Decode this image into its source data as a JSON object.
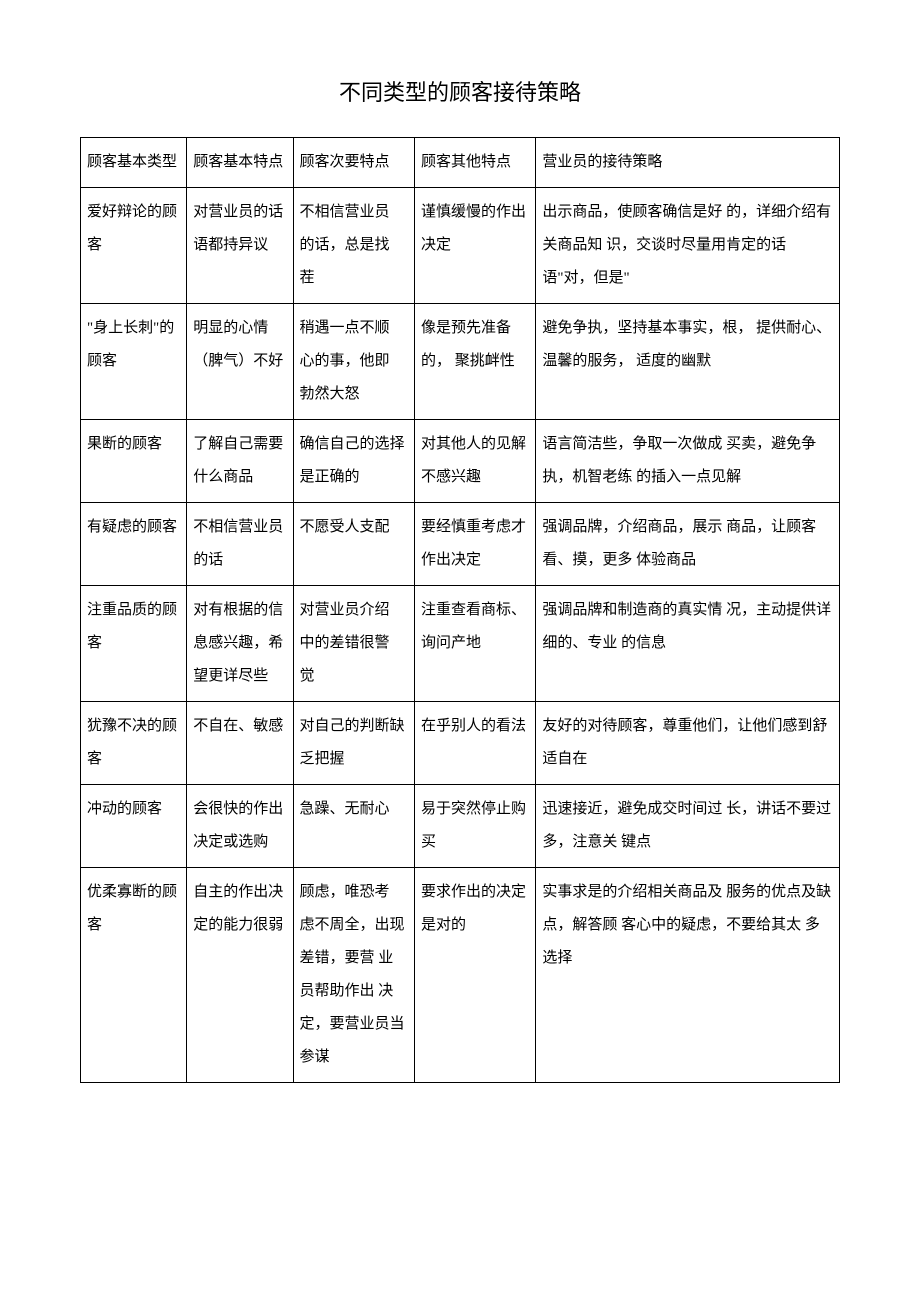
{
  "title": "不同类型的顾客接待策略",
  "headers": {
    "c1": "顾客基本类型",
    "c2": "顾客基本特点",
    "c3": "顾客次要特点",
    "c4": "顾客其他特点",
    "c5": "营业员的接待策略"
  },
  "rows": [
    {
      "c1": "爱好辩论的顾客",
      "c2": "对营业员的话语都持异议",
      "c3": "不相信营业员 的话，总是找 茬",
      "c4": "谨慎缓慢的作出决定",
      "c5": "出示商品，使顾客确信是好 的，详细介绍有关商品知 识，交谈时尽量用肯定的话 语\"对，但是\""
    },
    {
      "c1": "\"身上长刺\"的顾客",
      "c2": "明显的心情（脾气）不好",
      "c3": "稍遇一点不顺 心的事，他即 勃然大怒",
      "c4": "像是预先准备的， 聚挑衅性",
      "c5": "避免争执，坚持基本事实，根， 提供耐心、温馨的服务， 适度的幽默"
    },
    {
      "c1": "果断的顾客",
      "c2": "了解自己需要什么商品",
      "c3": "确信自己的选择是正确的",
      "c4": "对其他人的见解不感兴趣",
      "c5": "语言简洁些，争取一次做成 买卖，避免争执，机智老练 的插入一点见解"
    },
    {
      "c1": "有疑虑的顾客",
      "c2": "不相信营业员的话",
      "c3": "不愿受人支配",
      "c4": "要经慎重考虑才作出决定",
      "c5": "强调品牌，介绍商品，展示 商品，让顾客看、摸，更多 体验商品"
    },
    {
      "c1": "注重品质的顾客",
      "c2": "对有根据的信息感兴趣，希 望更详尽些",
      "c3": "对营业员介绍 中的差错很警 觉",
      "c4": "注重查看商标、询问产地",
      "c5": "强调品牌和制造商的真实情 况，主动提供详细的、专业 的信息"
    },
    {
      "c1": "犹豫不决的顾客",
      "c2": "不自在、敏感",
      "c3": "对自己的判断缺乏把握",
      "c4": "在乎别人的看法",
      "c5": "友好的对待顾客，尊重他们，让他们感到舒适自在"
    },
    {
      "c1": "冲动的顾客",
      "c2": "会很快的作出决定或选购",
      "c3": "急躁、无耐心",
      "c4": "易于突然停止购买",
      "c5": "迅速接近，避免成交时间过 长，讲话不要过多，注意关 键点"
    },
    {
      "c1": "优柔寡断的顾客",
      "c2": "自主的作出决定的能力很弱",
      "c3": "顾虑，唯恐考 虑不周全，出现差错，要营 业员帮助作出 决定，要营业员当参谋",
      "c4": "要求作出的决定是对的",
      "c5": "实事求是的介绍相关商品及 服务的优点及缺点，解答顾 客心中的疑虑，不要给其太 多选择"
    }
  ]
}
